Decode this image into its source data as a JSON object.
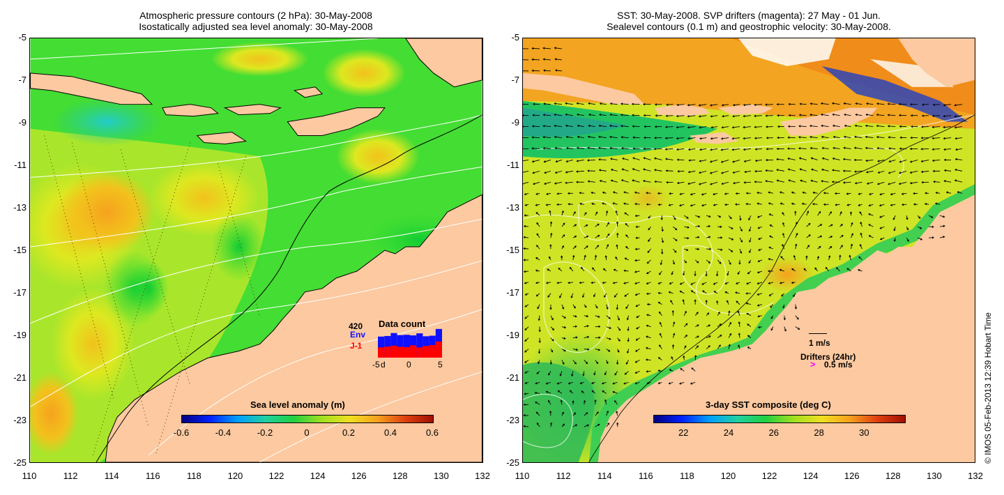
{
  "left_panel": {
    "title_line1": "Atmospheric pressure contours (2 hPa): 30-May-2008",
    "title_line2": "Isostatically adjusted sea level anomaly: 30-May-2008",
    "colorbar_title": "Sea level anomaly (m)",
    "colorbar_ticks": [
      "-0.6",
      "-0.4",
      "-0.2",
      "0",
      "0.2",
      "0.4",
      "0.6"
    ],
    "inset": {
      "title": "Data count",
      "max_label": "420",
      "series": [
        {
          "name": "Env",
          "color": "#1010ff"
        },
        {
          "name": "J-1",
          "color": "#ff0000"
        }
      ],
      "x_ticks": [
        "-5",
        "d",
        "0",
        "5"
      ],
      "bars_total": [
        0.72,
        0.74,
        0.84,
        0.77,
        0.78,
        0.76,
        0.83,
        0.73,
        0.75,
        0.98
      ],
      "bars_j1": [
        0.35,
        0.38,
        0.41,
        0.37,
        0.36,
        0.42,
        0.35,
        0.4,
        0.43,
        0.55
      ]
    }
  },
  "right_panel": {
    "title_line1": "SST: 30-May-2008. SVP drifters (magenta): 27 May - 01 Jun.",
    "title_line2": "Sealevel contours (0.1 m) and geostrophic velocity: 30-May-2008.",
    "colorbar_title": "3-day SST composite (deg C)",
    "colorbar_ticks": [
      "22",
      "24",
      "26",
      "28",
      "30"
    ],
    "velocity_scale_label": "1 m/s",
    "drifters_label": "Drifters (24hr)",
    "drifter_symbol": ">",
    "drifter_speed_label": "0.5 m/s"
  },
  "axes": {
    "y_ticks": [
      "-5",
      "-7",
      "-9",
      "-11",
      "-13",
      "-15",
      "-17",
      "-19",
      "-21",
      "-23",
      "-25"
    ],
    "x_ticks": [
      "110",
      "112",
      "114",
      "116",
      "118",
      "120",
      "122",
      "124",
      "126",
      "128",
      "130",
      "132"
    ]
  },
  "credit": "© IMOS 05-Feb-2013 12:39 Hobart Time",
  "colors": {
    "land": "#fcc9a0",
    "sea_green": "#33dd33",
    "sea_yellow": "#ccee22",
    "orange": "#f6a21e"
  }
}
